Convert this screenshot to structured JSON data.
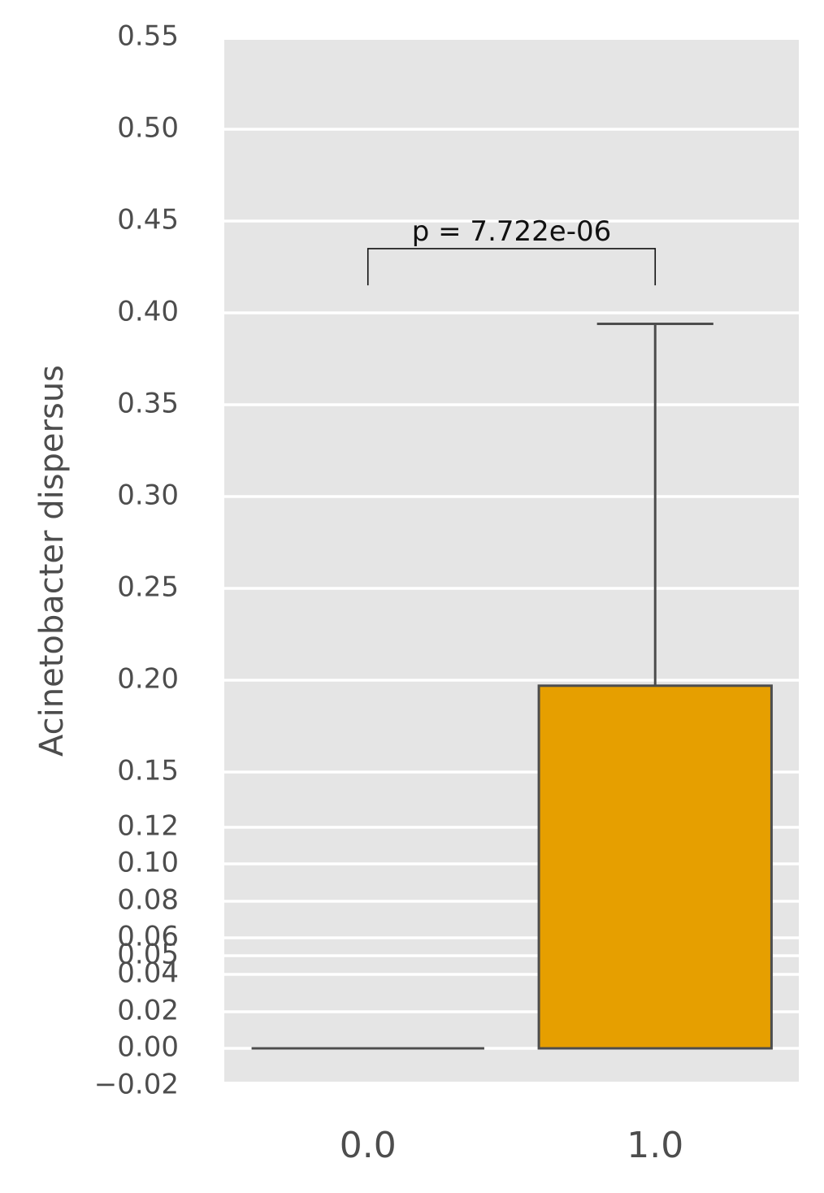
{
  "chart_data": {
    "type": "box",
    "title": "",
    "xlabel": "",
    "ylabel": "Acinetobacter dispersus",
    "categories": [
      "0.0",
      "1.0"
    ],
    "boxes": [
      {
        "category": "0.0",
        "whisker_low": 0.0,
        "q1": 0.0,
        "median": 0.0,
        "q3": 0.0,
        "whisker_high": 0.0,
        "color": "#e69f00"
      },
      {
        "category": "1.0",
        "whisker_low": 0.0,
        "q1": 0.0,
        "median": 0.0,
        "q3": 0.197,
        "whisker_high": 0.394,
        "color": "#e69f00"
      }
    ],
    "ylim": [
      -0.02,
      0.55
    ],
    "y_ticks": [
      -0.02,
      0.0,
      0.02,
      0.04,
      0.05,
      0.06,
      0.08,
      0.1,
      0.12,
      0.15,
      0.2,
      0.25,
      0.3,
      0.35,
      0.4,
      0.45,
      0.5,
      0.55
    ],
    "y_tick_labels": [
      "−0.02",
      "0.00",
      "0.02",
      "0.04",
      "0.05",
      "0.06",
      "0.08",
      "0.10",
      "0.12",
      "0.15",
      "0.20",
      "0.25",
      "0.30",
      "0.35",
      "0.40",
      "0.45",
      "0.50",
      "0.55"
    ],
    "grid": true,
    "background_color": "#e5e5e5",
    "grid_color": "#ffffff",
    "annotations": [
      {
        "text": "p = 7.722e-06",
        "between": [
          "0.0",
          "1.0"
        ],
        "y": 0.435,
        "y_low": 0.415
      }
    ]
  }
}
